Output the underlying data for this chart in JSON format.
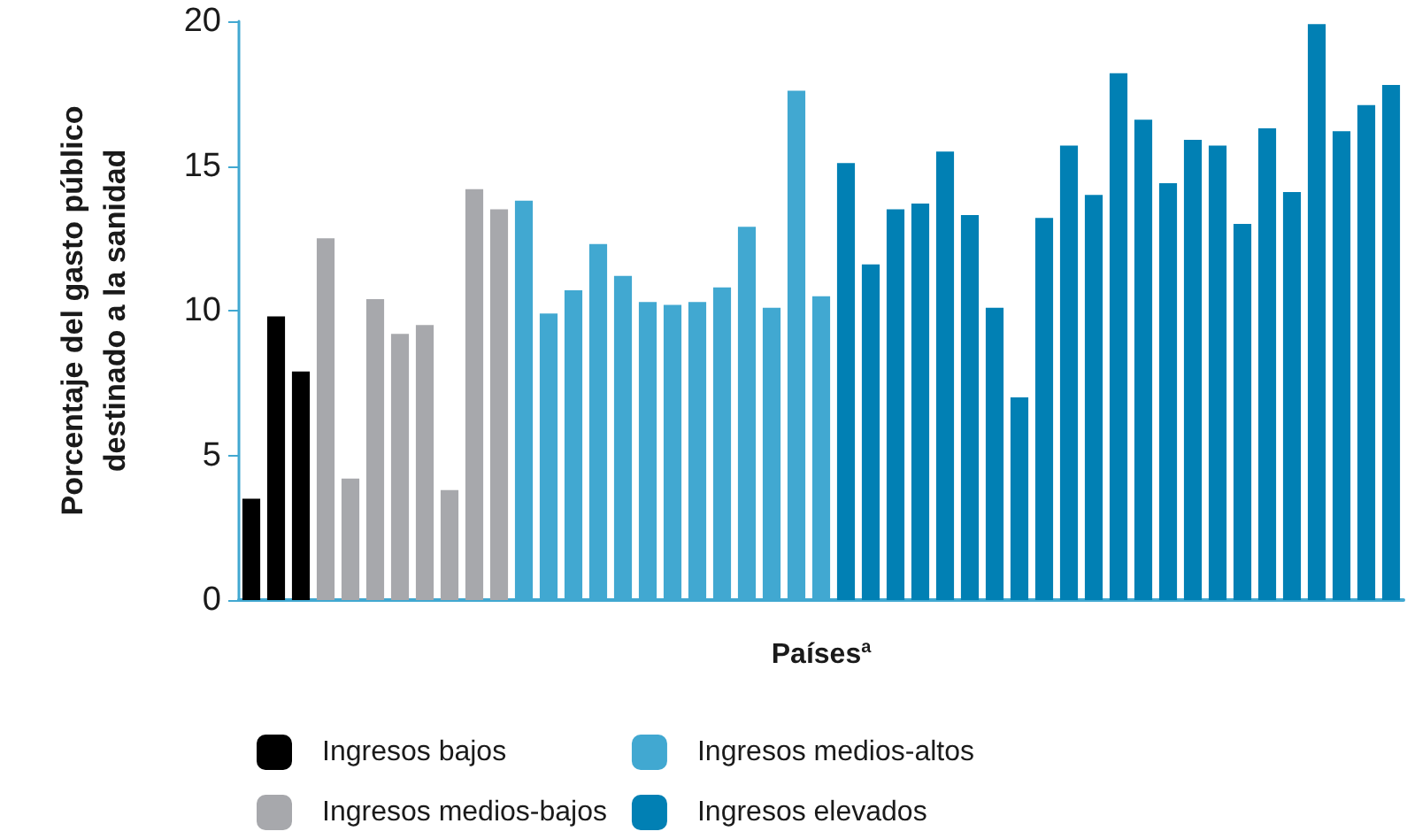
{
  "chart_data": {
    "type": "bar",
    "xlabel": "Países$^{a}$",
    "ylabel": "Porcentaje del gasto público\ndestinado a la sanidad",
    "categories": [
      null,
      null,
      null,
      null,
      null,
      null,
      null,
      null,
      null,
      null,
      null,
      null,
      null,
      null,
      null,
      null,
      null,
      null,
      null,
      null,
      null,
      null,
      null,
      null,
      null,
      null,
      null,
      null,
      null,
      null,
      null,
      null,
      null,
      null,
      null,
      null,
      null,
      null,
      null,
      null,
      null,
      null,
      null,
      null,
      null,
      null,
      null
    ],
    "series": [
      {
        "name": "Ingresos bajos",
        "color": "#000000",
        "values": [
          3.5,
          9.8,
          7.9,
          null,
          null,
          null,
          null,
          null,
          null,
          null,
          null,
          null,
          null,
          null,
          null,
          null,
          null,
          null,
          null,
          null,
          null,
          null,
          null,
          null,
          null,
          null,
          null,
          null,
          null,
          null,
          null,
          null,
          null,
          null,
          null,
          null,
          null,
          null,
          null,
          null,
          null,
          null,
          null,
          null,
          null,
          null,
          null
        ]
      },
      {
        "name": "Ingresos medios-bajos",
        "color": "#a7a8ac",
        "values": [
          null,
          null,
          null,
          12.5,
          4.2,
          10.4,
          9.2,
          9.5,
          3.8,
          14.2,
          13.5,
          null,
          null,
          null,
          null,
          null,
          null,
          null,
          null,
          null,
          null,
          null,
          null,
          null,
          null,
          null,
          null,
          null,
          null,
          null,
          null,
          null,
          null,
          null,
          null,
          null,
          null,
          null,
          null,
          null,
          null,
          null,
          null,
          null,
          null,
          null,
          null
        ]
      },
      {
        "name": "Ingresos medios-altos",
        "color": "#41a8d1",
        "values": [
          null,
          null,
          null,
          null,
          null,
          null,
          null,
          null,
          null,
          null,
          null,
          13.8,
          9.9,
          10.7,
          12.3,
          11.2,
          10.3,
          10.2,
          10.3,
          10.8,
          12.9,
          10.1,
          17.6,
          10.5,
          null,
          null,
          null,
          null,
          null,
          null,
          null,
          null,
          null,
          null,
          null,
          null,
          null,
          null,
          null,
          null,
          null,
          null,
          null,
          null,
          null,
          null,
          null
        ]
      },
      {
        "name": "Ingresos elevados",
        "color": "#0180b4",
        "values": [
          null,
          null,
          null,
          null,
          null,
          null,
          null,
          null,
          null,
          null,
          null,
          null,
          null,
          null,
          null,
          null,
          null,
          null,
          null,
          null,
          null,
          null,
          null,
          null,
          15.1,
          11.6,
          13.5,
          13.7,
          15.5,
          13.3,
          10.1,
          7.0,
          13.2,
          15.7,
          14.0,
          18.2,
          16.6,
          14.4,
          15.9,
          15.7,
          13.0,
          16.3,
          14.1,
          19.9,
          16.2,
          17.1,
          17.8
        ]
      }
    ],
    "ylim": [
      0,
      20
    ],
    "yticks": [
      0,
      5,
      10,
      15,
      20
    ],
    "grid": false,
    "legend": "bottom"
  }
}
